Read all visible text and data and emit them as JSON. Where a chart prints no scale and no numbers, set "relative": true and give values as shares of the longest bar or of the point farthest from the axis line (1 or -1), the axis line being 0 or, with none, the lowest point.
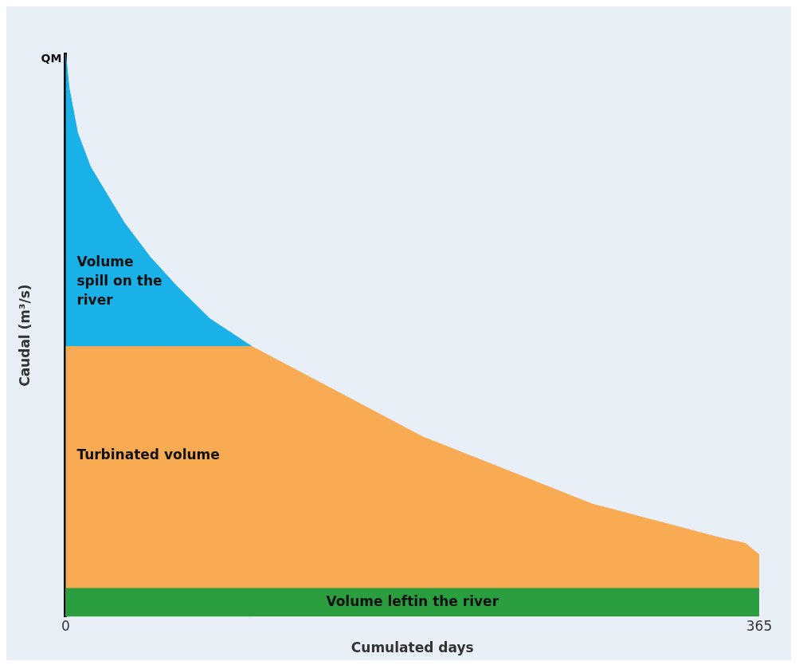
{
  "chart_data": {
    "type": "area",
    "relative": true,
    "xlabel": "Cumulated days",
    "ylabel": "Caudal (m³/s)",
    "xlim": [
      0,
      365
    ],
    "xticks": [
      0,
      365
    ],
    "grid": false,
    "x": [
      0,
      1.8,
      6.3,
      13,
      21.9,
      30.9,
      44.3,
      57.8,
      75.7,
      98.1,
      120.5,
      142.9,
      165.3,
      187.6,
      210,
      232.4,
      254.8,
      277.2,
      299.6,
      322,
      344.4,
      357.8,
      365
    ],
    "series": [
      {
        "name": "Volume leftin the river",
        "color": "#2a9e3f",
        "values": [
          0.05,
          0.05,
          0.05,
          0.05,
          0.05,
          0.05,
          0.05,
          0.05,
          0.05,
          0.05,
          0.05,
          0.05,
          0.05,
          0.05,
          0.05,
          0.05,
          0.05,
          0.05,
          0.05,
          0.05,
          0.05,
          0.05,
          0.05
        ]
      },
      {
        "name": "Turbinated volume",
        "color": "#f8ab53",
        "values": [
          0.48,
          0.48,
          0.48,
          0.48,
          0.48,
          0.48,
          0.48,
          0.48,
          0.48,
          0.48,
          0.44,
          0.4,
          0.36,
          0.32,
          0.29,
          0.26,
          0.23,
          0.2,
          0.18,
          0.16,
          0.14,
          0.13,
          0.11
        ]
      },
      {
        "name": "Volume spill on the river",
        "color": "#1ab0e8",
        "values": [
          1,
          0.94,
          0.86,
          0.8,
          0.75,
          0.7,
          0.64,
          0.59,
          0.53,
          0.48,
          null,
          null,
          null,
          null,
          null,
          null,
          null,
          null,
          null,
          null,
          null,
          null,
          null
        ]
      }
    ],
    "annotations": [
      {
        "text": "QM",
        "x": 0,
        "y": 1
      }
    ]
  }
}
